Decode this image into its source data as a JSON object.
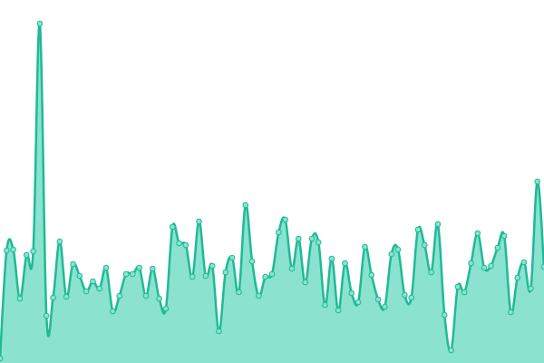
{
  "chart_data": {
    "type": "area",
    "values": [
      5,
      124,
      125,
      71,
      119,
      123,
      374,
      52,
      72,
      134,
      73,
      109,
      96,
      79,
      90,
      82,
      105,
      57,
      74,
      98,
      98,
      105,
      74,
      104,
      71,
      60,
      150,
      132,
      130,
      95,
      156,
      96,
      107,
      35,
      100,
      116,
      78,
      174,
      112,
      74,
      95,
      98,
      144,
      158,
      104,
      137,
      89,
      137,
      133,
      64,
      115,
      58,
      110,
      77,
      67,
      128,
      97,
      70,
      62,
      120,
      125,
      75,
      72,
      147,
      130,
      100,
      153,
      53,
      14,
      84,
      78,
      110,
      143,
      105,
      107,
      127,
      140,
      56,
      94,
      111,
      82,
      200,
      106
    ],
    "color": "#1fba96",
    "fill": "#8ae2cf",
    "ylim": [
      0,
      400
    ]
  }
}
